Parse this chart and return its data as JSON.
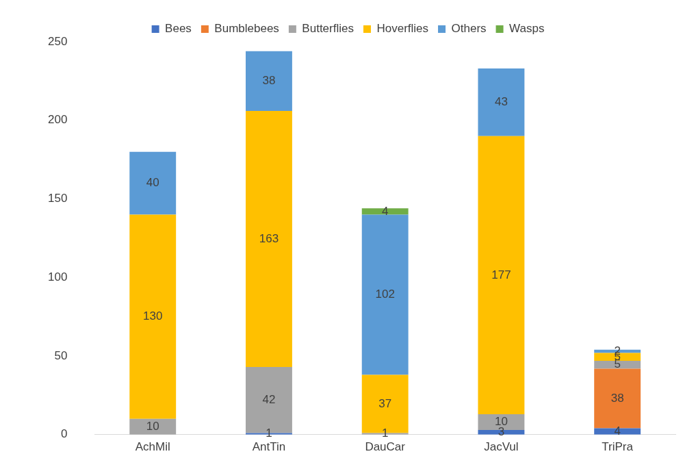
{
  "chart_data": {
    "type": "bar",
    "stacked": true,
    "categories": [
      "AchMil",
      "AntTin",
      "DauCar",
      "JacVul",
      "TriPra"
    ],
    "series": [
      {
        "name": "Bees",
        "color": "#4472c4",
        "values": [
          null,
          1,
          null,
          3,
          4
        ]
      },
      {
        "name": "Bumblebees",
        "color": "#ed7d31",
        "values": [
          null,
          null,
          null,
          null,
          38
        ]
      },
      {
        "name": "Butterflies",
        "color": "#a5a5a5",
        "values": [
          10,
          42,
          1,
          10,
          5
        ]
      },
      {
        "name": "Hoverflies",
        "color": "#ffc000",
        "values": [
          130,
          163,
          37,
          177,
          5
        ]
      },
      {
        "name": "Others",
        "color": "#5b9bd5",
        "values": [
          40,
          38,
          102,
          43,
          2
        ]
      },
      {
        "name": "Wasps",
        "color": "#70ad47",
        "values": [
          null,
          null,
          4,
          null,
          null
        ]
      }
    ],
    "ylim": [
      0,
      250
    ],
    "yticks": [
      0,
      50,
      100,
      150,
      200,
      250
    ],
    "grid": false,
    "legend": "top",
    "data_labels": true
  }
}
